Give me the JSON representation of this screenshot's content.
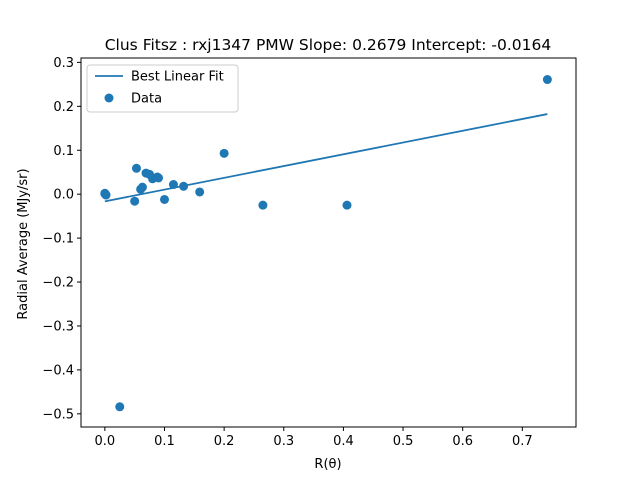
{
  "chart_data": {
    "type": "scatter",
    "title": "Clus Fitsz : rxj1347  PMW  Slope: 0.2679  Intercept: -0.0164",
    "xlabel": "R(θ)",
    "ylabel": "Radial Average (MJy/sr)",
    "xlim": [
      -0.04,
      0.79
    ],
    "ylim": [
      -0.53,
      0.31
    ],
    "xticks": [
      0.0,
      0.1,
      0.2,
      0.3,
      0.4,
      0.5,
      0.6,
      0.7
    ],
    "xtick_labels": [
      "0.0",
      "0.1",
      "0.2",
      "0.3",
      "0.4",
      "0.5",
      "0.6",
      "0.7"
    ],
    "yticks": [
      -0.5,
      -0.4,
      -0.3,
      -0.2,
      -0.1,
      0.0,
      0.1,
      0.2,
      0.3
    ],
    "ytick_labels": [
      "−0.5",
      "−0.4",
      "−0.3",
      "−0.2",
      "−0.1",
      "0.0",
      "0.1",
      "0.2",
      "0.3"
    ],
    "legend": {
      "placement": "top-left",
      "entries": [
        "Best Linear Fit",
        "Data"
      ]
    },
    "color": "#1f77b4",
    "series": [
      {
        "name": "Data",
        "kind": "scatter",
        "points": [
          [
            0.0,
            0.001
          ],
          [
            0.001,
            0.0
          ],
          [
            0.002,
            -0.002
          ],
          [
            0.0,
            0.002
          ],
          [
            0.025,
            -0.484
          ],
          [
            0.05,
            -0.016
          ],
          [
            0.053,
            0.059
          ],
          [
            0.06,
            0.011
          ],
          [
            0.063,
            0.016
          ],
          [
            0.069,
            0.048
          ],
          [
            0.075,
            0.045
          ],
          [
            0.08,
            0.035
          ],
          [
            0.088,
            0.039
          ],
          [
            0.09,
            0.037
          ],
          [
            0.1,
            -0.012
          ],
          [
            0.115,
            0.022
          ],
          [
            0.132,
            0.018
          ],
          [
            0.159,
            0.005
          ],
          [
            0.2,
            0.093
          ],
          [
            0.265,
            -0.025
          ],
          [
            0.406,
            -0.025
          ],
          [
            0.742,
            0.261
          ]
        ]
      },
      {
        "name": "Best Linear Fit",
        "kind": "line",
        "slope": 0.2679,
        "intercept": -0.0164,
        "x": [
          0.0,
          0.742
        ]
      }
    ]
  }
}
